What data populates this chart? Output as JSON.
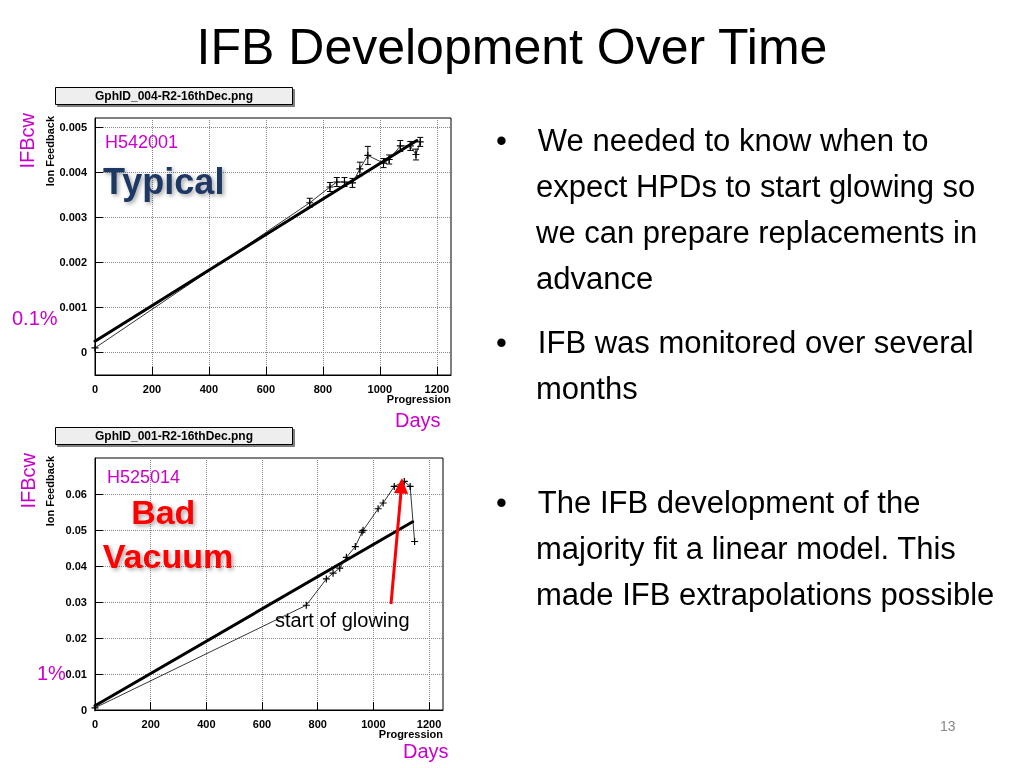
{
  "chart_data": [
    {
      "type": "other",
      "title": "IFB Development Over Time",
      "annotations": [
        "• We needed to know when to expect HPDs to start glowing so we can prepare replacements in advance",
        "• IFB was monitored over several months",
        "• The IFB development of the majority fit a linear model. This made IFB extrapolations possible",
        "13"
      ]
    },
    {
      "type": "line",
      "title": "GphID_004-R2-16thDec.png",
      "xlabel": "Progression",
      "ylabel": "Ion Feedback",
      "xlim": [
        0,
        1250
      ],
      "xticks": [
        0,
        200,
        400,
        600,
        800,
        1000,
        1200
      ],
      "ylim": [
        -0.0005,
        0.0052
      ],
      "yticks": [
        0,
        0.001,
        0.002,
        0.003,
        0.004,
        0.005
      ],
      "grid": true,
      "marker": "cross",
      "series": [
        {
          "color": "#000000",
          "x": [
            0,
            754,
            825,
            849,
            876,
            904,
            930,
            958,
            1013,
            1033,
            1072,
            1107,
            1127,
            1142
          ],
          "values": [
            0.0001,
            0.00332,
            0.00367,
            0.00378,
            0.00378,
            0.00376,
            0.00407,
            0.00437,
            0.0042,
            0.00428,
            0.00458,
            0.00458,
            0.00439,
            0.00467
          ],
          "errors": [
            null,
            0.0001,
            0.0001,
            0.0001,
            0.0001,
            0.0001,
            0.00015,
            0.0002,
            0.0001,
            0.0001,
            0.00012,
            0.0001,
            0.00012,
            0.0001
          ]
        },
        {
          "type": "line",
          "marker": "none",
          "color": "#000000",
          "x": [
            0,
            1130
          ],
          "values": [
            0.00025,
            0.0047
          ]
        }
      ],
      "annotations": [
        "H542001",
        "Typical",
        "IFBcw",
        "0.1%",
        "Days"
      ]
    },
    {
      "type": "line",
      "title": "GphID_001-R2-16thDec.png",
      "xlabel": "Progression",
      "ylabel": "Ion Feedback",
      "xlim": [
        0,
        1250
      ],
      "xticks": [
        0,
        200,
        400,
        600,
        800,
        1000,
        1200
      ],
      "ylim": [
        0,
        0.07
      ],
      "yticks": [
        0,
        0.01,
        0.02,
        0.03,
        0.04,
        0.05,
        0.06
      ],
      "grid": true,
      "marker": "cross",
      "series": [
        {
          "color": "#000000",
          "x": [
            0,
            759,
            831,
            855,
            879,
            903,
            935,
            959,
            963,
            1017,
            1035,
            1075,
            1111,
            1132,
            1148
          ],
          "values": [
            0.0006,
            0.0291,
            0.0364,
            0.038,
            0.0394,
            0.0424,
            0.0454,
            0.0494,
            0.0499,
            0.0559,
            0.0575,
            0.0621,
            0.0635,
            0.0621,
            0.0468
          ]
        },
        {
          "type": "line",
          "marker": "none",
          "color": "#000000",
          "x": [
            0,
            1141
          ],
          "values": [
            0.0012,
            0.0523
          ]
        }
      ],
      "annotations": [
        "H525014",
        "Bad Vacuum",
        "start of glowing",
        "IFBcw",
        "1%",
        "Days"
      ]
    }
  ]
}
